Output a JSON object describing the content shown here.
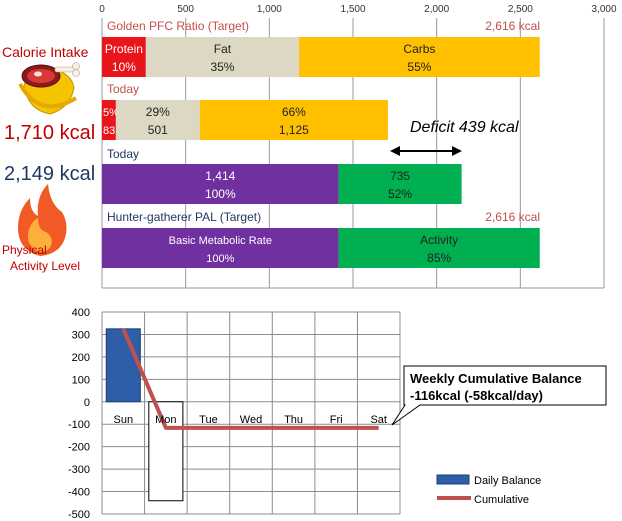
{
  "left_panel": {
    "calorie_label": "Calorie Intake",
    "intake_value": "1,710 kcal",
    "expenditure_value": "2,149 kcal",
    "pal_label_line1": "Physical",
    "pal_label_line2": "Activity Level",
    "food_icon": "meat-and-banana-icon",
    "flame_icon": "flame-icon"
  },
  "colors": {
    "protein": "#e8151b",
    "fat": "#ddd8c4",
    "carbs": "#ffc000",
    "bmr": "#7030a0",
    "activity": "#00b050",
    "daily_bar": "#2e5ea8",
    "cumulative_line": "#c0504d",
    "target_text": "#c0504d",
    "today_text": "#1f3864"
  },
  "chart_data": [
    {
      "type": "bar",
      "orientation": "horizontal-stacked",
      "xlim": [
        0,
        3000
      ],
      "xticks": [
        "0",
        "500",
        "1,000",
        "1,500",
        "2,000",
        "2,500",
        "3,000"
      ],
      "tick_values": [
        0,
        500,
        1000,
        1500,
        2000,
        2500,
        3000
      ],
      "rows": [
        {
          "title": "Golden PFC Ratio (Target)",
          "total_label": "2,616 kcal",
          "segments": [
            {
              "key": "protein",
              "value": 262,
              "line1": "Protein",
              "line2": "10%"
            },
            {
              "key": "fat",
              "value": 916,
              "line1": "Fat",
              "line2": "35%"
            },
            {
              "key": "carbs",
              "value": 1438,
              "line1": "Carbs",
              "line2": "55%"
            }
          ]
        },
        {
          "title": "Today",
          "total_label": "",
          "segments": [
            {
              "key": "protein",
              "value": 83,
              "line1": "5%",
              "line2": "83"
            },
            {
              "key": "fat",
              "value": 501,
              "line1": "29%",
              "line2": "501"
            },
            {
              "key": "carbs",
              "value": 1125,
              "line1": "66%",
              "line2": "1,125"
            }
          ]
        },
        {
          "title": "Today",
          "total_label": "",
          "segments": [
            {
              "key": "bmr",
              "value": 1414,
              "line1": "1,414",
              "line2": "100%"
            },
            {
              "key": "activity",
              "value": 735,
              "line1": "735",
              "line2": "52%"
            }
          ]
        },
        {
          "title": "Hunter-gatherer  PAL (Target)",
          "total_label": "2,616 kcal",
          "segments": [
            {
              "key": "bmr",
              "value": 1414,
              "line1": "Basic Metabolic Rate",
              "line2": "100%"
            },
            {
              "key": "activity",
              "value": 1202,
              "line1": "Activity",
              "line2": "85%"
            }
          ]
        }
      ],
      "annotation": "Deficit 439 kcal",
      "deficit_range": [
        1710,
        2149
      ]
    },
    {
      "type": "bar",
      "categories": [
        "Sun",
        "Mon",
        "Tue",
        "Wed",
        "Thu",
        "Fri",
        "Sat"
      ],
      "series": [
        {
          "name": "Daily Balance",
          "values": [
            325,
            -441,
            0,
            0,
            0,
            0,
            0
          ]
        },
        {
          "name": "Cumulative",
          "type": "line",
          "values": [
            325,
            -116,
            -116,
            -116,
            -116,
            -116,
            -116
          ]
        }
      ],
      "ylim": [
        -500,
        400
      ],
      "yticks": [
        "400",
        "300",
        "200",
        "100",
        "0",
        "-100",
        "-200",
        "-300",
        "-400",
        "-500"
      ],
      "ytick_values": [
        400,
        300,
        200,
        100,
        0,
        -100,
        -200,
        -300,
        -400,
        -500
      ],
      "callout_line1": "Weekly Cumulative Balance",
      "callout_line2": "-116kcal (-58kcal/day)",
      "legend": "bottom-right"
    }
  ]
}
